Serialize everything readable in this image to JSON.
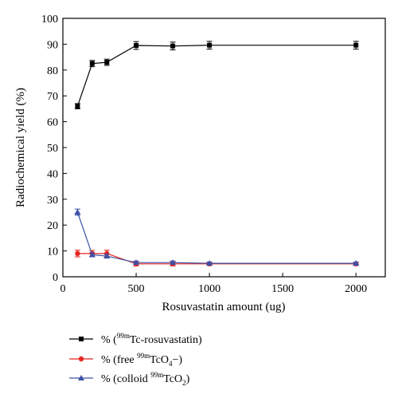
{
  "chart_data": {
    "type": "line",
    "xlabel": "Rosuvastatin amount (ug)",
    "ylabel": "Radiochemical yield (%)",
    "xlim": [
      0,
      2200
    ],
    "ylim": [
      0,
      100
    ],
    "xticks": [
      0,
      500,
      1000,
      1500,
      2000
    ],
    "yticks": [
      0,
      10,
      20,
      30,
      40,
      50,
      60,
      70,
      80,
      90,
      100
    ],
    "x": [
      100,
      200,
      300,
      500,
      750,
      1000,
      2000
    ],
    "legend_position": "bottom",
    "series": [
      {
        "name": "% (99mTc-rosuvastatin)",
        "label_prefix": "% (",
        "label_sup": "99m",
        "label_main": "Tc-rosuvastatin)",
        "label_sub": "",
        "label_tail": "",
        "color": "#000000",
        "marker": "square",
        "values": [
          66,
          82.5,
          83,
          89.5,
          89.3,
          89.6,
          89.6
        ],
        "errors": [
          1,
          1.2,
          1.2,
          1.5,
          1.5,
          1.5,
          1.5
        ]
      },
      {
        "name": "% (free 99mTcO4−)",
        "label_prefix": "% (free ",
        "label_sup": "99m",
        "label_main": "TcO",
        "label_sub": "4",
        "label_tail": "−)",
        "color": "#e8261e",
        "marker": "circle",
        "values": [
          9,
          9,
          9,
          5,
          5,
          5,
          5
        ],
        "errors": [
          1.3,
          1.2,
          1.3,
          0.8,
          0.8,
          0.6,
          0.6
        ]
      },
      {
        "name": "% (colloid 99mTcO2)",
        "label_prefix": "% (colloid ",
        "label_sup": "99m",
        "label_main": "TcO",
        "label_sub": "2",
        "label_tail": ")",
        "color": "#3d51a6",
        "marker": "triangle",
        "values": [
          25,
          8.5,
          8,
          5.5,
          5.5,
          5.2,
          5.2
        ],
        "errors": [
          1.2,
          0.8,
          0.7,
          0.6,
          0.6,
          0.5,
          0.5
        ]
      }
    ]
  }
}
